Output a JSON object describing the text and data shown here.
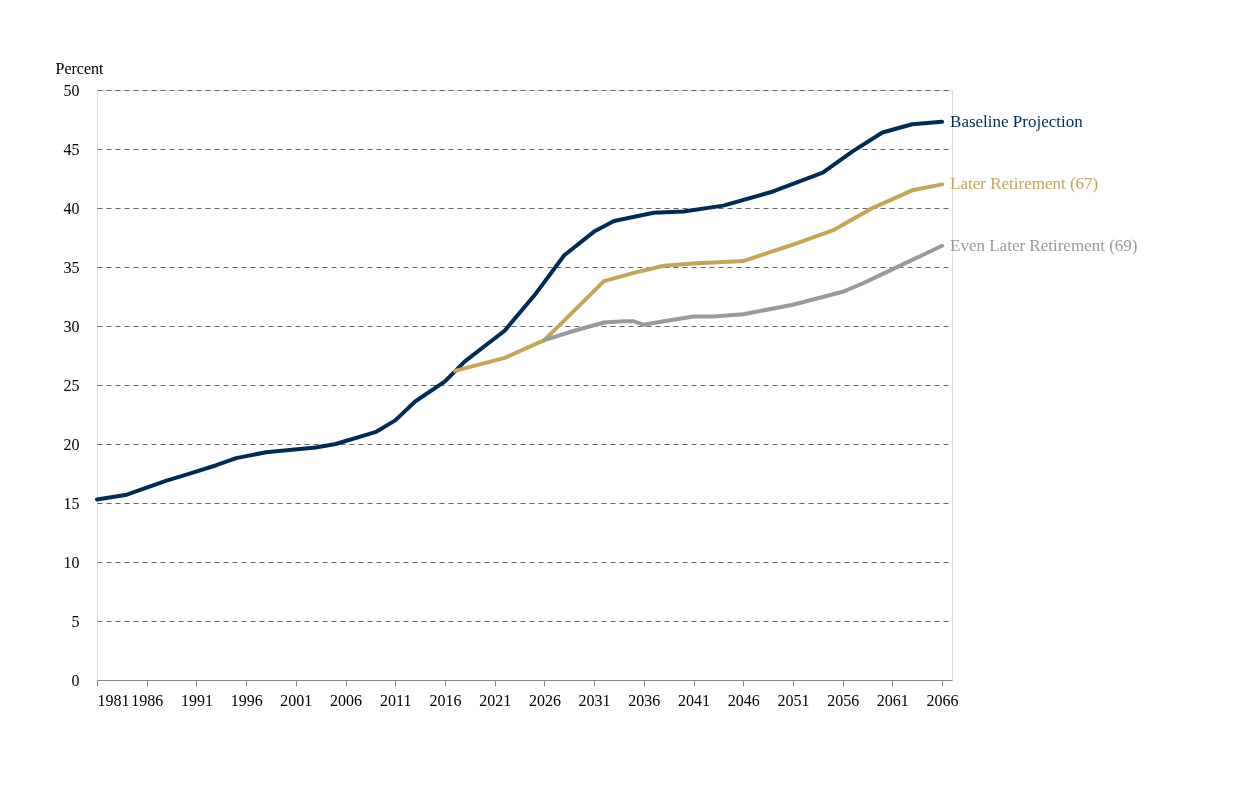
{
  "chart_data": {
    "type": "line",
    "ylabel": "Percent",
    "xlim": [
      1981,
      2067
    ],
    "xticks": [
      1981,
      1986,
      1991,
      1996,
      2001,
      2006,
      2011,
      2016,
      2021,
      2026,
      2031,
      2036,
      2041,
      2046,
      2051,
      2056,
      2061,
      2066
    ],
    "ylim": [
      0,
      50
    ],
    "yticks": [
      0,
      5,
      10,
      15,
      20,
      25,
      30,
      35,
      40,
      45,
      50
    ],
    "grid": "y",
    "legend": false,
    "line_style": "solid",
    "marker": "none",
    "series": [
      {
        "name": "Baseline Projection",
        "color": "#002b55",
        "x": [
          1981,
          1984,
          1988,
          1990,
          1993,
          1995,
          1998,
          2003,
          2005,
          2009,
          2011,
          2013,
          2016,
          2018,
          2022,
          2025,
          2028,
          2031,
          2033,
          2037,
          2040,
          2044,
          2049,
          2054,
          2057,
          2060,
          2063,
          2066
        ],
        "values": [
          15.3,
          15.7,
          16.9,
          17.4,
          18.2,
          18.8,
          19.3,
          19.7,
          20.0,
          21.0,
          22.0,
          23.6,
          25.3,
          27.0,
          29.6,
          32.6,
          36.0,
          38.0,
          38.9,
          39.6,
          39.7,
          40.2,
          41.4,
          43.0,
          44.8,
          46.4,
          47.1,
          47.3
        ]
      },
      {
        "name": "Later Retirement (67)",
        "color": "#c5a55a",
        "x": [
          2017,
          2022,
          2026,
          2029,
          2032,
          2035,
          2038,
          2041,
          2046,
          2051,
          2055,
          2059,
          2063,
          2066
        ],
        "values": [
          26.2,
          27.3,
          28.8,
          31.3,
          33.8,
          34.5,
          35.1,
          35.3,
          35.5,
          36.9,
          38.1,
          40.0,
          41.5,
          42.0
        ]
      },
      {
        "name": "Even Later Retirement (69)",
        "color": "#9a9a9e",
        "x": [
          2026,
          2029,
          2032,
          2034,
          2035,
          2036,
          2038,
          2041,
          2043,
          2046,
          2051,
          2056,
          2058,
          2061,
          2064,
          2066
        ],
        "values": [
          28.8,
          29.6,
          30.3,
          30.4,
          30.4,
          30.1,
          30.4,
          30.8,
          30.8,
          31.0,
          31.8,
          32.9,
          33.6,
          34.8,
          36.0,
          36.8
        ]
      }
    ]
  }
}
